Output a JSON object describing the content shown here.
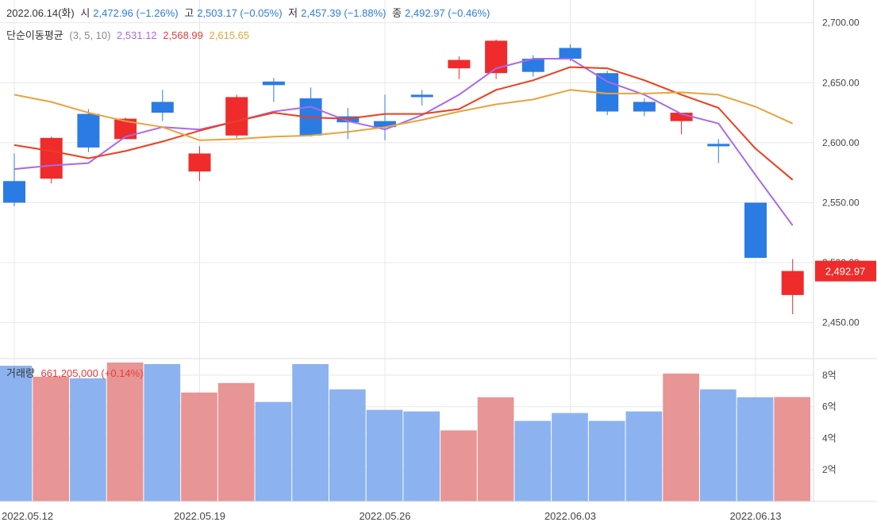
{
  "header": {
    "date": "2022.06.14(화)",
    "open_label": "시",
    "open_value": "2,472.96 (−1.26%)",
    "high_label": "고",
    "high_value": "2,503.17 (−0.05%)",
    "low_label": "저",
    "low_value": "2,457.39 (−1.88%)",
    "close_label": "종",
    "close_value": "2,492.97 (−0.46%)"
  },
  "ma_legend": {
    "title": "단순이동평균",
    "periods": "(3, 5, 10)",
    "ma3": "2,531.12",
    "ma5": "2,568.99",
    "ma10": "2,615.65"
  },
  "volume_legend": {
    "title": "거래량",
    "value": "661,205,000 (+0.14%)"
  },
  "colors": {
    "up": "#ef2b2b",
    "down": "#2b7be4",
    "up_volume": "#e89595",
    "down_volume": "#8cb2f0",
    "ma3": "#a969e8",
    "ma5": "#ef3d1c",
    "ma10": "#e8a33c",
    "grid": "#e8e8e8"
  },
  "chart_data": [
    {
      "type": "candlestick",
      "title": "",
      "ylim": [
        2420,
        2715
      ],
      "price_ticks": [
        "2,450.00",
        "2,500.00",
        "2,550.00",
        "2,600.00",
        "2,650.00",
        "2,700.00"
      ],
      "tick_values": [
        2450,
        2500,
        2550,
        2600,
        2650,
        2700
      ],
      "x_tick_labels": [
        {
          "index": 0,
          "label": "2022.05.12"
        },
        {
          "index": 5,
          "label": "2022.05.19"
        },
        {
          "index": 10,
          "label": "2022.05.26"
        },
        {
          "index": 15,
          "label": "2022.06.03"
        },
        {
          "index": 20,
          "label": "2022.06.13"
        }
      ],
      "last_price_label": "2,492.97",
      "last_price": 2492.97,
      "candles": [
        {
          "o": 2568,
          "h": 2591,
          "l": 2547,
          "c": 2550
        },
        {
          "o": 2570,
          "h": 2605,
          "l": 2566,
          "c": 2604
        },
        {
          "o": 2624,
          "h": 2628,
          "l": 2592,
          "c": 2596
        },
        {
          "o": 2603,
          "h": 2621,
          "l": 2603,
          "c": 2620
        },
        {
          "o": 2634,
          "h": 2644,
          "l": 2618,
          "c": 2625
        },
        {
          "o": 2576,
          "h": 2597,
          "l": 2568,
          "c": 2591
        },
        {
          "o": 2606,
          "h": 2640,
          "l": 2604,
          "c": 2638
        },
        {
          "o": 2651,
          "h": 2654,
          "l": 2634,
          "c": 2648
        },
        {
          "o": 2637,
          "h": 2646,
          "l": 2605,
          "c": 2606
        },
        {
          "o": 2622,
          "h": 2629,
          "l": 2603,
          "c": 2617
        },
        {
          "o": 2618,
          "h": 2640,
          "l": 2602,
          "c": 2613
        },
        {
          "o": 2640,
          "h": 2644,
          "l": 2631,
          "c": 2638
        },
        {
          "o": 2662,
          "h": 2672,
          "l": 2653,
          "c": 2669
        },
        {
          "o": 2658,
          "h": 2686,
          "l": 2653,
          "c": 2685
        },
        {
          "o": 2670,
          "h": 2673,
          "l": 2655,
          "c": 2659
        },
        {
          "o": 2679,
          "h": 2682,
          "l": 2668,
          "c": 2670
        },
        {
          "o": 2658,
          "h": 2660,
          "l": 2623,
          "c": 2626
        },
        {
          "o": 2634,
          "h": 2637,
          "l": 2622,
          "c": 2626
        },
        {
          "o": 2618,
          "h": 2625,
          "l": 2607,
          "c": 2625
        },
        {
          "o": 2599,
          "h": 2603,
          "l": 2583,
          "c": 2597
        },
        {
          "o": 2550,
          "h": 2550,
          "l": 2504,
          "c": 2504
        },
        {
          "o": 2473,
          "h": 2503,
          "l": 2457,
          "c": 2493
        }
      ],
      "series": [
        {
          "name": "3",
          "key": "ma3",
          "values": [
            2578,
            2581,
            2583,
            2605,
            2613,
            2611,
            2618,
            2626,
            2630,
            2618,
            2611,
            2623,
            2640,
            2662,
            2670,
            2670,
            2651,
            2640,
            2624,
            2616,
            2573,
            2531
          ]
        },
        {
          "name": "5",
          "key": "ma5",
          "values": [
            2598,
            2593,
            2587,
            2593,
            2601,
            2610,
            2618,
            2625,
            2621,
            2620,
            2624,
            2624,
            2628,
            2644,
            2652,
            2663,
            2662,
            2652,
            2640,
            2629,
            2595,
            2569
          ]
        },
        {
          "name": "10",
          "key": "ma10",
          "values": [
            2640,
            2634,
            2625,
            2618,
            2613,
            2602,
            2603,
            2605,
            2606,
            2609,
            2613,
            2619,
            2626,
            2632,
            2636,
            2644,
            2641,
            2641,
            2642,
            2640,
            2630,
            2616
          ]
        }
      ]
    },
    {
      "type": "bar",
      "title": "",
      "ylim": [
        0,
        900000000
      ],
      "tick_labels": [
        "2억",
        "4억",
        "6억",
        "8억"
      ],
      "tick_values": [
        200000000,
        400000000,
        600000000,
        800000000
      ],
      "values": [
        860000000,
        790000000,
        780000000,
        880000000,
        870000000,
        690000000,
        750000000,
        630000000,
        870000000,
        710000000,
        580000000,
        570000000,
        450000000,
        660000000,
        510000000,
        560000000,
        510000000,
        570000000,
        810000000,
        710000000,
        660000000,
        661205000
      ],
      "up": [
        false,
        true,
        false,
        true,
        false,
        true,
        true,
        false,
        false,
        false,
        false,
        false,
        true,
        true,
        false,
        false,
        false,
        false,
        true,
        false,
        false,
        true
      ]
    }
  ]
}
